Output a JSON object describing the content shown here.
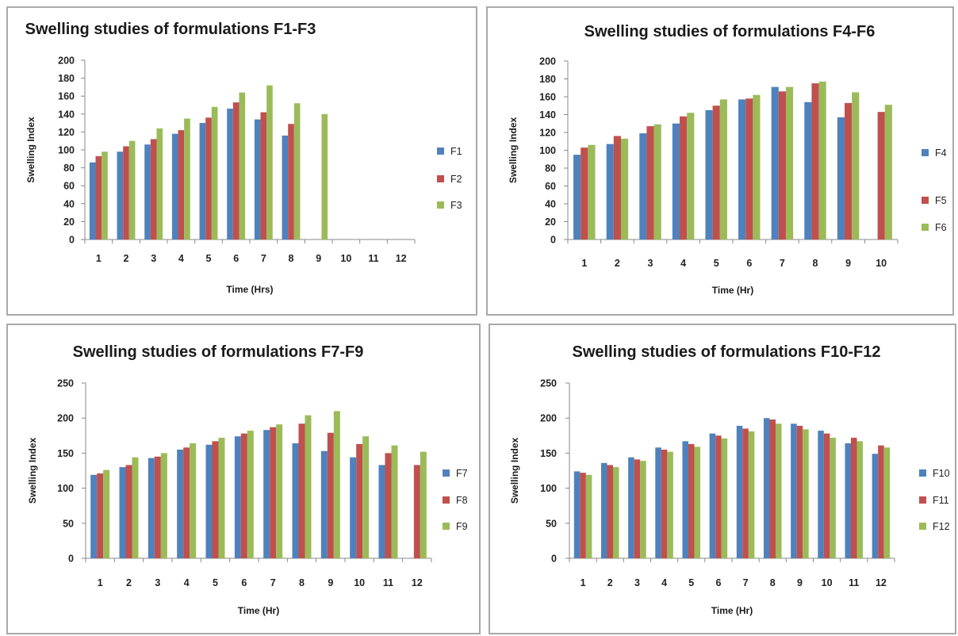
{
  "colors": {
    "series": [
      "#4f81bd",
      "#c0504d",
      "#9bbb59"
    ],
    "axis": "#888888"
  },
  "chart_data": [
    {
      "type": "bar",
      "title": "Swelling studies of formulations F1-F3",
      "xlabel": "Time (Hrs)",
      "ylabel": "Swelling Index",
      "ylim": [
        0,
        200
      ],
      "yticks": [
        0,
        20,
        40,
        60,
        80,
        100,
        120,
        140,
        160,
        180,
        200
      ],
      "categories": [
        "1",
        "2",
        "3",
        "4",
        "5",
        "6",
        "7",
        "8",
        "9",
        "10",
        "11",
        "12"
      ],
      "legend_position": "right",
      "grid": false,
      "series": [
        {
          "name": "F1",
          "values": [
            86,
            98,
            106,
            118,
            130,
            146,
            134,
            116,
            null,
            null,
            null,
            null
          ]
        },
        {
          "name": "F2",
          "values": [
            93,
            104,
            112,
            122,
            136,
            153,
            142,
            129,
            null,
            null,
            null,
            null
          ]
        },
        {
          "name": "F3",
          "values": [
            98,
            110,
            124,
            135,
            148,
            164,
            172,
            152,
            140,
            null,
            null,
            null
          ]
        }
      ]
    },
    {
      "type": "bar",
      "title": "Swelling studies of formulations F4-F6",
      "xlabel": "Time (Hr)",
      "ylabel": "Swelling Index",
      "ylim": [
        0,
        200
      ],
      "yticks": [
        0,
        20,
        40,
        60,
        80,
        100,
        120,
        140,
        160,
        180,
        200
      ],
      "categories": [
        "1",
        "2",
        "3",
        "4",
        "5",
        "6",
        "7",
        "8",
        "9",
        "10"
      ],
      "legend_position": "right",
      "grid": false,
      "series": [
        {
          "name": "F4",
          "values": [
            95,
            107,
            119,
            130,
            145,
            157,
            171,
            154,
            137,
            null
          ]
        },
        {
          "name": "F5",
          "values": [
            103,
            116,
            127,
            138,
            150,
            158,
            166,
            175,
            153,
            143
          ]
        },
        {
          "name": "F6",
          "values": [
            106,
            113,
            129,
            142,
            157,
            162,
            171,
            177,
            165,
            151
          ]
        }
      ]
    },
    {
      "type": "bar",
      "title": "Swelling studies of formulations F7-F9",
      "xlabel": "Time (Hr)",
      "ylabel": "Swelling Index",
      "ylim": [
        0,
        250
      ],
      "yticks": [
        0,
        50,
        100,
        150,
        200,
        250
      ],
      "categories": [
        "1",
        "2",
        "3",
        "4",
        "5",
        "6",
        "7",
        "8",
        "9",
        "10",
        "11",
        "12"
      ],
      "legend_position": "right",
      "grid": false,
      "series": [
        {
          "name": "F7",
          "values": [
            119,
            130,
            143,
            155,
            162,
            174,
            183,
            164,
            153,
            144,
            133,
            null
          ]
        },
        {
          "name": "F8",
          "values": [
            121,
            133,
            145,
            158,
            167,
            178,
            187,
            192,
            179,
            163,
            150,
            133
          ]
        },
        {
          "name": "F9",
          "values": [
            126,
            144,
            150,
            164,
            172,
            182,
            191,
            204,
            210,
            174,
            161,
            152
          ]
        }
      ]
    },
    {
      "type": "bar",
      "title": "Swelling studies of formulations F10-F12",
      "xlabel": "Time (Hr)",
      "ylabel": "Swelling Index",
      "ylim": [
        0,
        250
      ],
      "yticks": [
        0,
        50,
        100,
        150,
        200,
        250
      ],
      "categories": [
        "1",
        "2",
        "3",
        "4",
        "5",
        "6",
        "7",
        "8",
        "9",
        "10",
        "11",
        "12"
      ],
      "legend_position": "right",
      "grid": false,
      "series": [
        {
          "name": "F10",
          "values": [
            124,
            136,
            144,
            158,
            167,
            178,
            189,
            200,
            192,
            182,
            164,
            149
          ]
        },
        {
          "name": "F11",
          "values": [
            122,
            133,
            141,
            155,
            163,
            175,
            185,
            198,
            189,
            178,
            172,
            161
          ]
        },
        {
          "name": "F12",
          "values": [
            119,
            130,
            139,
            152,
            159,
            171,
            181,
            192,
            184,
            172,
            167,
            158
          ]
        }
      ]
    }
  ]
}
